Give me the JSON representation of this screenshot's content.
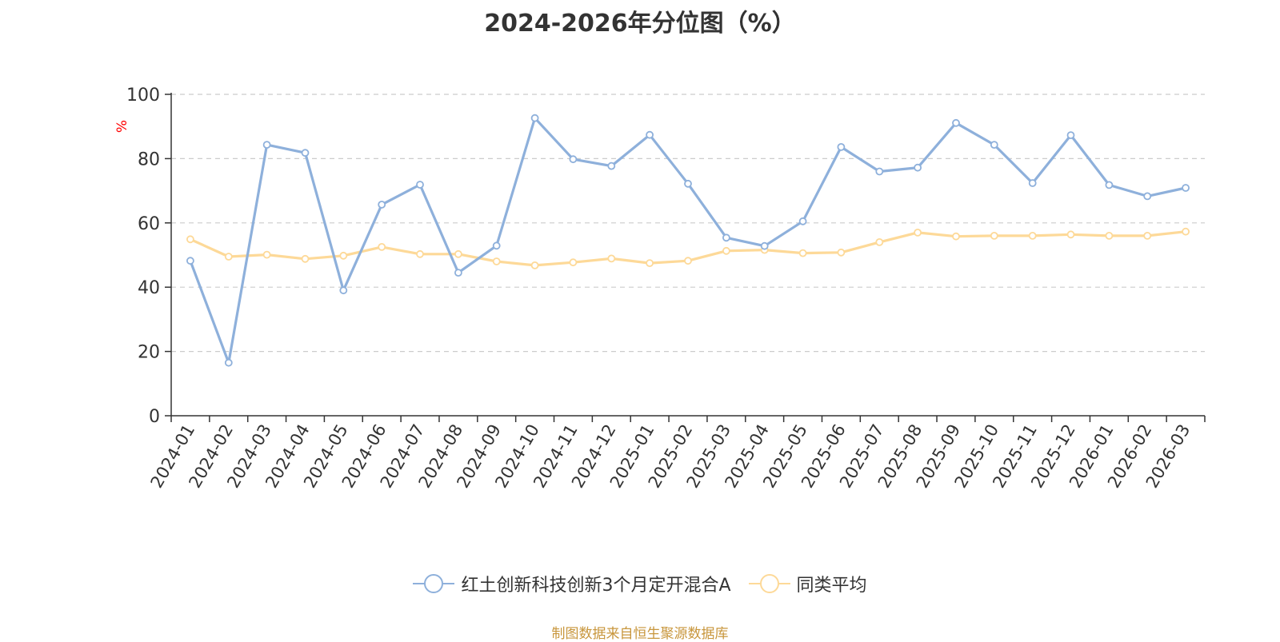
{
  "chart_data": {
    "type": "line",
    "title": "2024-2026年分位图（%）",
    "ylabel": "%",
    "xlabel": "",
    "ylim": [
      0,
      100
    ],
    "yticks": [
      0,
      20,
      40,
      60,
      80,
      100
    ],
    "grid": true,
    "legend_position": "bottom",
    "categories": [
      "2024-01",
      "2024-02",
      "2024-03",
      "2024-04",
      "2024-05",
      "2024-06",
      "2024-07",
      "2024-08",
      "2024-09",
      "2024-10",
      "2024-11",
      "2024-12",
      "2025-01",
      "2025-02",
      "2025-03",
      "2025-04",
      "2025-05",
      "2025-06",
      "2025-07",
      "2025-08",
      "2025-09",
      "2025-10",
      "2025-11",
      "2025-12",
      "2026-01",
      "2026-02",
      "2026-03"
    ],
    "series": [
      {
        "name": "红土创新科技创新3个月定开混合A",
        "color": "#8eb0db",
        "values": [
          48.2,
          16.5,
          84.3,
          81.8,
          39.0,
          65.7,
          71.9,
          44.5,
          52.9,
          92.6,
          79.8,
          77.7,
          87.4,
          72.2,
          55.4,
          52.8,
          60.5,
          83.6,
          76.0,
          77.2,
          91.1,
          84.3,
          72.4,
          87.3,
          71.8,
          68.3,
          70.9
        ]
      },
      {
        "name": "同类平均",
        "color": "#fdd998",
        "values": [
          54.9,
          49.5,
          50.1,
          48.8,
          49.8,
          52.5,
          50.3,
          50.3,
          48.0,
          46.8,
          47.7,
          48.9,
          47.5,
          48.2,
          51.3,
          51.6,
          50.6,
          50.8,
          54.0,
          57.0,
          55.8,
          56.0,
          56.0,
          56.4,
          56.0,
          56.0,
          57.3
        ]
      }
    ]
  },
  "source_note": "制图数据来自恒生聚源数据库",
  "colors": {
    "axis": "#333333",
    "grid": "#cccccc",
    "ylabel": "#ff0000",
    "source": "#c8963c"
  }
}
